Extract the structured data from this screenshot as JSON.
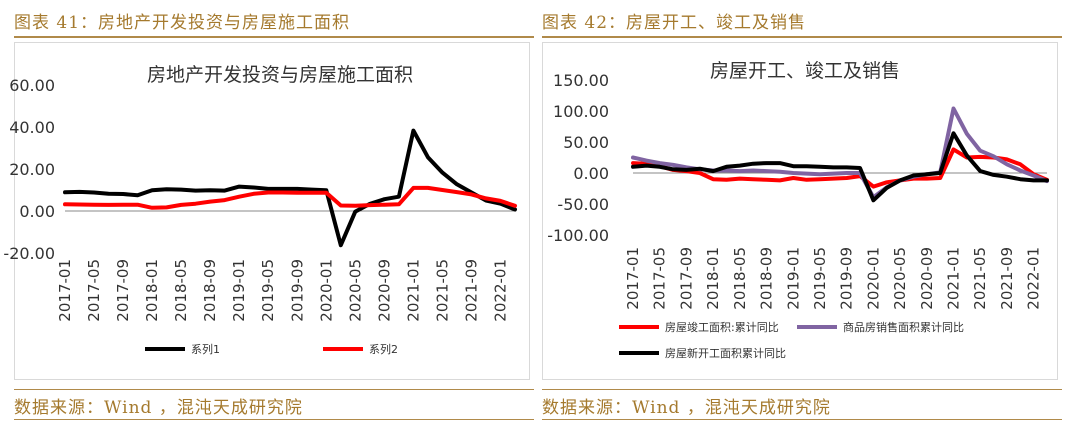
{
  "figures": [
    {
      "caption": "图表 41：房地产开发投资与房屋施工面积",
      "source": "数据来源：Wind ，混沌天成研究院"
    },
    {
      "caption": "图表 42：房屋开工、竣工及销售",
      "source": "数据来源：Wind ，混沌天成研究院"
    }
  ],
  "chart_data": [
    {
      "type": "line",
      "title": "房地产开发投资与房屋施工面积",
      "xlabel": "",
      "ylabel": "",
      "ylim": [
        -20,
        60
      ],
      "yticks": [
        "60.00",
        "40.00",
        "20.00",
        "0.00",
        "-20.00"
      ],
      "x": [
        "2017-01",
        "2017-03",
        "2017-05",
        "2017-07",
        "2017-09",
        "2017-11",
        "2018-01",
        "2018-03",
        "2018-05",
        "2018-07",
        "2018-09",
        "2018-11",
        "2019-01",
        "2019-03",
        "2019-05",
        "2019-07",
        "2019-09",
        "2019-11",
        "2020-01",
        "2020-03",
        "2020-05",
        "2020-07",
        "2020-09",
        "2020-11",
        "2021-01",
        "2021-03",
        "2021-05",
        "2021-07",
        "2021-09",
        "2021-11",
        "2022-01",
        "2022-03"
      ],
      "xticks": [
        "2017-01",
        "2017-05",
        "2017-09",
        "2018-01",
        "2018-05",
        "2018-09",
        "2019-01",
        "2019-05",
        "2019-09",
        "2020-01",
        "2020-05",
        "2020-09",
        "2021-01",
        "2021-05",
        "2021-09",
        "2022-01"
      ],
      "legend_position": "bottom",
      "grid": false,
      "series": [
        {
          "name": "系列1",
          "color": "#000000",
          "values": [
            8.9,
            9.1,
            8.8,
            8.2,
            8.1,
            7.5,
            9.9,
            10.4,
            10.2,
            9.7,
            9.9,
            9.7,
            11.6,
            11.2,
            10.5,
            10.5,
            10.5,
            10.2,
            9.9,
            -16.3,
            -0.3,
            3.4,
            5.6,
            6.8,
            38.3,
            25.6,
            18.3,
            12.7,
            8.8,
            5.0,
            3.5,
            0.7
          ]
        },
        {
          "name": "系列2",
          "color": "#ff0000",
          "values": [
            3.2,
            3.1,
            3.0,
            2.9,
            3.0,
            3.0,
            1.5,
            1.7,
            2.9,
            3.5,
            4.5,
            5.2,
            6.8,
            8.2,
            8.8,
            8.8,
            8.7,
            8.7,
            8.7,
            2.6,
            2.5,
            2.8,
            3.0,
            3.2,
            11.0,
            11.0,
            10.0,
            9.0,
            7.9,
            6.0,
            4.8,
            2.5
          ]
        }
      ]
    },
    {
      "type": "line",
      "title": "房屋开工、竣工及销售",
      "xlabel": "",
      "ylabel": "",
      "ylim": [
        -100,
        150
      ],
      "yticks": [
        "150.00",
        "100.00",
        "50.00",
        "0.00",
        "-50.00",
        "-100.00"
      ],
      "x": [
        "2017-01",
        "2017-03",
        "2017-05",
        "2017-07",
        "2017-09",
        "2017-11",
        "2018-01",
        "2018-03",
        "2018-05",
        "2018-07",
        "2018-09",
        "2018-11",
        "2019-01",
        "2019-03",
        "2019-05",
        "2019-07",
        "2019-09",
        "2019-11",
        "2020-01",
        "2020-03",
        "2020-05",
        "2020-07",
        "2020-09",
        "2020-11",
        "2021-01",
        "2021-03",
        "2021-05",
        "2021-07",
        "2021-09",
        "2021-11",
        "2022-01",
        "2022-03"
      ],
      "xticks": [
        "2017-01",
        "2017-05",
        "2017-09",
        "2018-01",
        "2018-05",
        "2018-09",
        "2019-01",
        "2019-05",
        "2019-09",
        "2020-01",
        "2020-05",
        "2020-09",
        "2021-01",
        "2021-05",
        "2021-09",
        "2022-01"
      ],
      "legend_position": "bottom",
      "grid": false,
      "series": [
        {
          "name": "房屋竣工面积:累计同比",
          "color": "#ff0000",
          "values": [
            16,
            15,
            11,
            5,
            3,
            0,
            -10,
            -11,
            -9,
            -10,
            -11,
            -12,
            -8,
            -11,
            -10,
            -9,
            -8,
            -5,
            -22,
            -15,
            -12,
            -9,
            -9,
            -8,
            38,
            25,
            26,
            25,
            22,
            14,
            -2,
            -11
          ]
        },
        {
          "name": "商品房销售面积累计同比",
          "color": "#8064a2",
          "values": [
            25,
            20,
            16,
            13,
            9,
            6,
            4,
            4,
            3,
            4,
            3,
            2,
            0,
            -1,
            -2,
            -1,
            0,
            0,
            -39,
            -23,
            -12,
            -6,
            -2,
            1,
            104,
            63,
            36,
            27,
            14,
            4,
            -4,
            -13
          ]
        },
        {
          "name": "房屋新开工面积累计同比",
          "color": "#000000",
          "values": [
            10,
            12,
            10,
            6,
            5,
            7,
            3,
            10,
            12,
            15,
            16,
            16,
            11,
            11,
            10,
            9,
            9,
            8,
            -44,
            -24,
            -12,
            -4,
            -2,
            0,
            64,
            28,
            3,
            -3,
            -6,
            -10,
            -12,
            -12
          ]
        }
      ]
    }
  ]
}
